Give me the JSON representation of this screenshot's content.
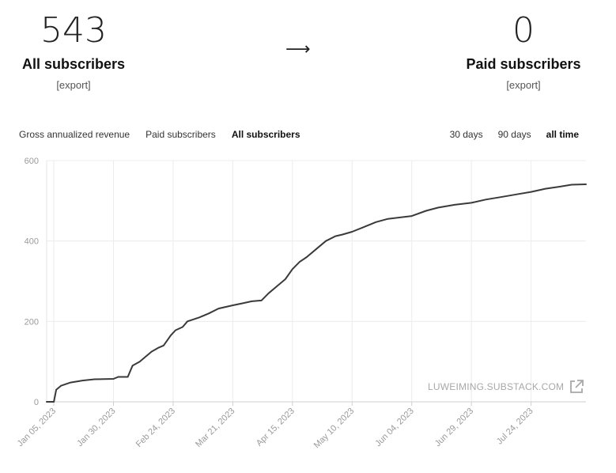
{
  "stats": {
    "all": {
      "value": "543",
      "label": "All subscribers",
      "export_label": "[export]"
    },
    "arrow": "⟶",
    "paid": {
      "value": "0",
      "label": "Paid subscribers",
      "export_label": "[export]"
    }
  },
  "metric_tabs": [
    {
      "label": "Gross annualized revenue",
      "active": false
    },
    {
      "label": "Paid subscribers",
      "active": false
    },
    {
      "label": "All subscribers",
      "active": true
    }
  ],
  "range_tabs": [
    {
      "label": "30 days",
      "active": false
    },
    {
      "label": "90 days",
      "active": false
    },
    {
      "label": "all time",
      "active": true
    }
  ],
  "watermark": {
    "text": "LUWEIMING.SUBSTACK.COM",
    "icon": "external-link-icon"
  },
  "colors": {
    "line": "#3a3a3a",
    "grid": "#ececec",
    "tick_text": "#9a9a9a"
  },
  "chart_data": {
    "type": "line",
    "title": "",
    "xlabel": "",
    "ylabel": "",
    "ylim": [
      0,
      600
    ],
    "yticks": [
      0,
      200,
      400,
      600
    ],
    "xlim": [
      "2023-01-02",
      "2023-08-16"
    ],
    "xticks": [
      "2023-01-05",
      "2023-01-30",
      "2023-02-24",
      "2023-03-21",
      "2023-04-15",
      "2023-05-10",
      "2023-06-04",
      "2023-06-29",
      "2023-07-24"
    ],
    "xtick_labels": [
      "Jan 05, 2023",
      "Jan 30, 2023",
      "Feb 24, 2023",
      "Mar 21, 2023",
      "Apr 15, 2023",
      "May 10, 2023",
      "Jun 04, 2023",
      "Jun 29, 2023",
      "Jul 24, 2023"
    ],
    "grid": true,
    "series": [
      {
        "x": [
          "2023-01-02",
          "2023-01-05",
          "2023-01-06",
          "2023-01-08",
          "2023-01-12",
          "2023-01-17",
          "2023-01-22",
          "2023-01-30",
          "2023-02-01",
          "2023-02-05",
          "2023-02-07",
          "2023-02-10",
          "2023-02-12",
          "2023-02-15",
          "2023-02-18",
          "2023-02-20",
          "2023-02-23",
          "2023-02-25",
          "2023-02-28",
          "2023-03-02",
          "2023-03-07",
          "2023-03-11",
          "2023-03-15",
          "2023-03-21",
          "2023-03-25",
          "2023-03-29",
          "2023-04-02",
          "2023-04-05",
          "2023-04-09",
          "2023-04-12",
          "2023-04-15",
          "2023-04-18",
          "2023-04-21",
          "2023-04-25",
          "2023-04-29",
          "2023-05-03",
          "2023-05-06",
          "2023-05-10",
          "2023-05-15",
          "2023-05-20",
          "2023-05-25",
          "2023-06-04",
          "2023-06-10",
          "2023-06-15",
          "2023-06-22",
          "2023-06-29",
          "2023-07-05",
          "2023-07-12",
          "2023-07-18",
          "2023-07-24",
          "2023-07-30",
          "2023-08-05",
          "2023-08-10",
          "2023-08-16"
        ],
        "y": [
          0,
          0,
          30,
          40,
          48,
          53,
          56,
          57,
          62,
          62,
          90,
          100,
          110,
          125,
          135,
          140,
          165,
          178,
          186,
          200,
          210,
          220,
          232,
          240,
          245,
          250,
          252,
          270,
          290,
          305,
          330,
          348,
          360,
          380,
          400,
          412,
          416,
          423,
          435,
          447,
          455,
          462,
          475,
          483,
          490,
          495,
          503,
          510,
          516,
          522,
          530,
          535,
          540,
          541
        ]
      }
    ]
  }
}
